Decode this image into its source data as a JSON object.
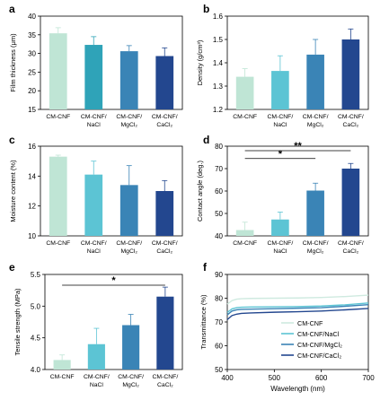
{
  "figure": {
    "panels": [
      "a",
      "b",
      "c",
      "d",
      "e",
      "f"
    ]
  },
  "chart_data": [
    {
      "panel": "a",
      "type": "bar",
      "categories": [
        "CM-CNF",
        "CM-CNF/ NaCl",
        "CM-CNF/ MgCl₂",
        "CM-CNF/ CaCl₂"
      ],
      "values": [
        35.4,
        32.3,
        30.6,
        29.3
      ],
      "errors": [
        1.5,
        2.2,
        1.5,
        2.2
      ],
      "colors": [
        "#bfe5d5",
        "#2fa3b8",
        "#3a84b6",
        "#23478f"
      ],
      "ylabel": "Film thickness (μm)",
      "ylim": [
        15,
        40
      ],
      "yticks": [
        15,
        20,
        25,
        30,
        35,
        40
      ],
      "significance": []
    },
    {
      "panel": "b",
      "type": "bar",
      "categories": [
        "CM-CNF",
        "CM-CNF/ NaCl",
        "CM-CNF/ MgCl₂",
        "CM-CNF/ CaCl₂"
      ],
      "values": [
        1.34,
        1.365,
        1.435,
        1.5
      ],
      "errors": [
        0.035,
        0.065,
        0.065,
        0.045
      ],
      "colors": [
        "#bfe5d5",
        "#5cc4d4",
        "#3a84b6",
        "#23478f"
      ],
      "ylabel": "Density (g/cm³)",
      "ylim": [
        1.2,
        1.6
      ],
      "yticks": [
        1.2,
        1.3,
        1.4,
        1.5,
        1.6
      ],
      "significance": []
    },
    {
      "panel": "c",
      "type": "bar",
      "categories": [
        "CM-CNF",
        "CM-CNF/ NaCl",
        "CM-CNF/ MgCl₂",
        "CM-CNF/ CaCl₂"
      ],
      "values": [
        15.3,
        14.1,
        13.4,
        13.0
      ],
      "errors": [
        0.1,
        0.9,
        1.3,
        0.7
      ],
      "colors": [
        "#bfe5d5",
        "#5cc4d4",
        "#3a84b6",
        "#23478f"
      ],
      "ylabel": "Moisture content (%)",
      "ylim": [
        10,
        16
      ],
      "yticks": [
        10,
        12,
        14,
        16
      ],
      "significance": []
    },
    {
      "panel": "d",
      "type": "bar",
      "categories": [
        "CM-CNF",
        "CM-CNF/ NaCl",
        "CM-CNF/ MgCl₂",
        "CM-CNF/ CaCl₂"
      ],
      "values": [
        42.6,
        47.3,
        60.2,
        70.0
      ],
      "errors": [
        3.5,
        3.3,
        3.3,
        2.3
      ],
      "colors": [
        "#bfe5d5",
        "#5cc4d4",
        "#3a84b6",
        "#23478f"
      ],
      "ylabel": "Contact angle (deg.)",
      "ylim": [
        40,
        80
      ],
      "yticks": [
        40,
        50,
        60,
        70,
        80
      ],
      "significance": [
        {
          "from": 0,
          "to": 2,
          "label": "*",
          "y": 74.5
        },
        {
          "from": 0,
          "to": 3,
          "label": "**",
          "y": 78.0
        }
      ]
    },
    {
      "panel": "e",
      "type": "bar",
      "categories": [
        "CM-CNF",
        "CM-CNF/ NaCl",
        "CM-CNF/ MgCl₂",
        "CM-CNF/ CaCl₂"
      ],
      "values": [
        4.15,
        4.4,
        4.7,
        5.15
      ],
      "errors": [
        0.08,
        0.25,
        0.17,
        0.15
      ],
      "colors": [
        "#bfe5d5",
        "#5cc4d4",
        "#3a84b6",
        "#23478f"
      ],
      "ylabel": "Tensile strength (MPa)",
      "ylim": [
        4.0,
        5.5
      ],
      "yticks": [
        4.0,
        4.5,
        5.0,
        5.5
      ],
      "significance": [
        {
          "from": 0,
          "to": 3,
          "label": "*",
          "y": 5.33
        }
      ]
    },
    {
      "panel": "f",
      "type": "line",
      "xlabel": "Wavelength (nm)",
      "ylabel": "Transmittance (%)",
      "xlim": [
        400,
        700
      ],
      "ylim": [
        50,
        90
      ],
      "xticks": [
        400,
        500,
        600,
        700
      ],
      "yticks": [
        50,
        60,
        70,
        80,
        90
      ],
      "x": [
        400,
        410,
        420,
        430,
        450,
        500,
        550,
        600,
        650,
        700
      ],
      "series": [
        {
          "name": "CM-CNF",
          "color": "#cfeae0",
          "values": [
            77.5,
            79.0,
            79.6,
            79.8,
            79.9,
            80.0,
            80.1,
            80.3,
            80.7,
            81.3
          ]
        },
        {
          "name": "CM-CNF/NaCl",
          "color": "#5cc4d4",
          "values": [
            74.0,
            75.5,
            76.0,
            76.2,
            76.3,
            76.4,
            76.5,
            76.7,
            77.2,
            78.0
          ]
        },
        {
          "name": "CM-CNF/MgCl₂",
          "color": "#3a84b6",
          "values": [
            73.0,
            74.6,
            75.1,
            75.3,
            75.4,
            75.6,
            75.8,
            76.0,
            76.6,
            77.3
          ]
        },
        {
          "name": "CM-CNF/CaCl₂",
          "color": "#23478f",
          "values": [
            71.0,
            72.7,
            73.3,
            73.6,
            73.8,
            74.1,
            74.3,
            74.6,
            75.1,
            75.7
          ]
        }
      ],
      "legend": "lower-right"
    }
  ]
}
